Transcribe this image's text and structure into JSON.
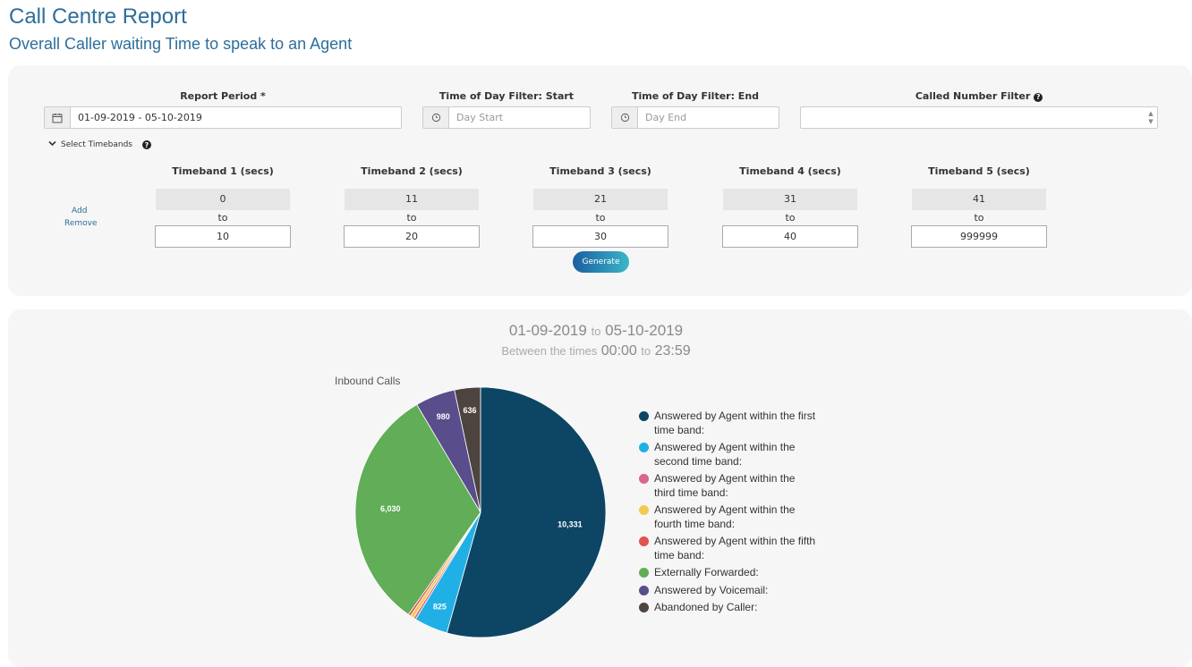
{
  "page": {
    "title": "Call Centre Report",
    "subtitle": "Overall Caller waiting Time to speak to an Agent"
  },
  "filters": {
    "report_period_label": "Report Period *",
    "report_period_value": "01-09-2019 - 05-10-2019",
    "tod_start_label": "Time of Day Filter: Start",
    "tod_start_placeholder": "Day Start",
    "tod_end_label": "Time of Day Filter: End",
    "tod_end_placeholder": "Day End",
    "called_number_label": "Called Number Filter",
    "called_number_value": "",
    "select_timebands_label": "Select Timebands",
    "add_label": "Add",
    "remove_label": "Remove",
    "to_label": "to",
    "generate_label": "Generate",
    "timebands": [
      {
        "label": "Timeband 1 (secs)",
        "start": "0",
        "end": "10"
      },
      {
        "label": "Timeband 2 (secs)",
        "start": "11",
        "end": "20"
      },
      {
        "label": "Timeband 3 (secs)",
        "start": "21",
        "end": "30"
      },
      {
        "label": "Timeband 4 (secs)",
        "start": "31",
        "end": "40"
      },
      {
        "label": "Timeband 5 (secs)",
        "start": "41",
        "end": "999999"
      }
    ]
  },
  "report": {
    "date_from": "01-09-2019",
    "date_to": "05-10-2019",
    "to_word": "to",
    "between_label": "Between the times",
    "time_from": "00:00",
    "time_to": "23:59"
  },
  "chart_data": {
    "type": "pie",
    "title": "Inbound Calls",
    "series": [
      {
        "name": "Answered by Agent within the first time band:",
        "value": 10331,
        "color": "#0d4664",
        "label": "10,331"
      },
      {
        "name": "Answered by Agent within the second time band:",
        "value": 825,
        "color": "#21b0e6",
        "label": "825"
      },
      {
        "name": "Answered by Agent within the third time band:",
        "value": 60,
        "color": "#d8678a",
        "label": ""
      },
      {
        "name": "Answered by Agent within the fourth time band:",
        "value": 90,
        "color": "#f2ca53",
        "label": ""
      },
      {
        "name": "Answered by Agent within the fifth time band:",
        "value": 60,
        "color": "#e4514f",
        "label": ""
      },
      {
        "name": "Externally Forwarded:",
        "value": 6030,
        "color": "#62ad57",
        "label": "6,030"
      },
      {
        "name": "Answered by Voicemail:",
        "value": 980,
        "color": "#5a4d8c",
        "label": "980"
      },
      {
        "name": "Abandoned by Caller:",
        "value": 636,
        "color": "#4e443f",
        "label": "636"
      }
    ],
    "legend_position": "right"
  },
  "icons": {
    "calendar": "calendar-icon",
    "clock": "clock-icon",
    "help": "help-icon",
    "chevron": "chevron-down-icon"
  }
}
